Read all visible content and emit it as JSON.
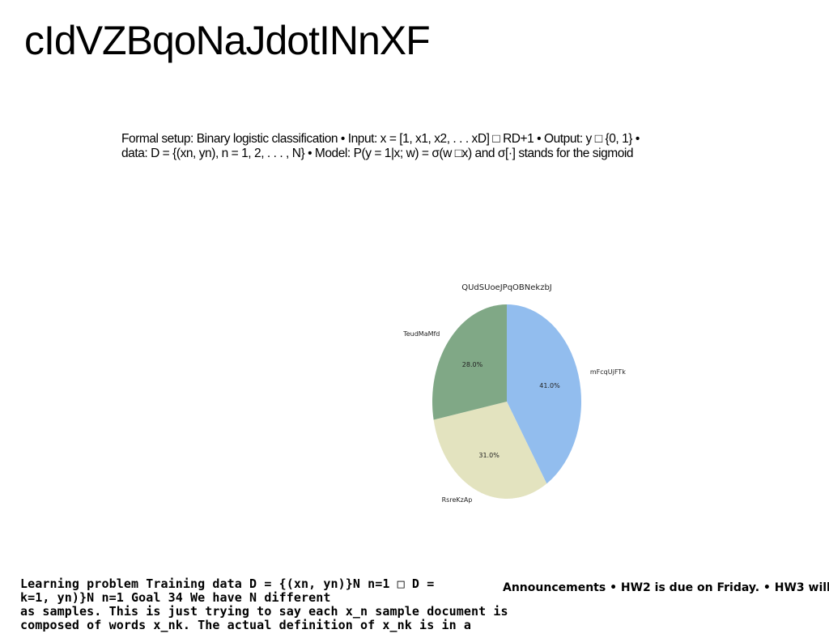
{
  "slide": {
    "title": "cIdVZBqoNaJdotINnXF"
  },
  "setup": {
    "lines": [
      "Formal setup: Binary logistic classification • Input: x = [1, x1, x2, . . . xD] □ RD+1 • Output: y □ {0, 1} •",
      "data: D = {(xn, yn), n = 1, 2, . . . , N} • Model: P(y = 1|x; w) = σ(w □x) and σ[·] stands for the sigmoid"
    ]
  },
  "chart_data": {
    "type": "pie",
    "title": "QUdSUoeJPqOBNekzbJ",
    "start_angle_deg": 90,
    "direction": "clockwise",
    "slices": [
      {
        "label": "mFcqUjFTk",
        "value": 41.0,
        "pct_label": "41.0%",
        "color": "#92bdee"
      },
      {
        "label": "RsreKzAp",
        "value": 31.0,
        "pct_label": "31.0%",
        "color": "#e3e3bf"
      },
      {
        "label": "TeudMaMfd",
        "value": 28.0,
        "pct_label": "28.0%",
        "color": "#80a886"
      }
    ]
  },
  "learning": {
    "lines": [
      "Learning problem Training data D = {(xn, yn)}N n=1 □ D =",
      "k=1, yn)}N n=1 Goal 34 We have N different",
      "as samples. This is just trying to say each x_n sample document is",
      "composed of words x_nk. The actual definition of x_nk is in a"
    ]
  },
  "announcements": {
    "text": "Announcements • HW2 is due on Friday. • HW3 will"
  }
}
